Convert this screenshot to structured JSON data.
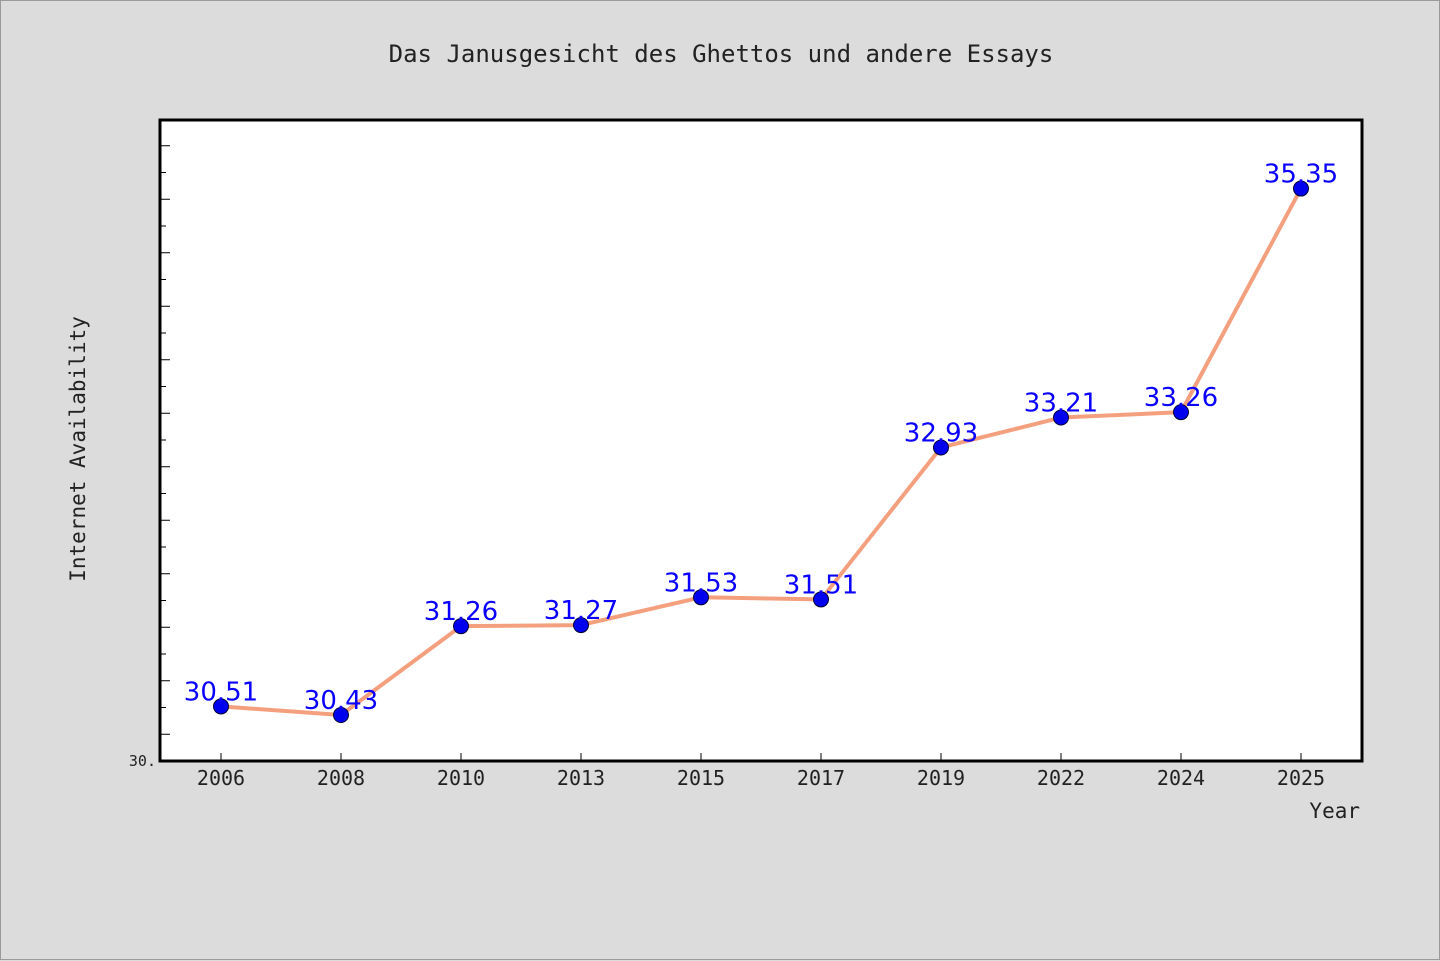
{
  "chart_data": {
    "type": "line",
    "title": "Das Janusgesicht des Ghettos und andere Essays",
    "xlabel": "Year",
    "ylabel": "Internet Availability",
    "categories": [
      "2006",
      "2008",
      "2010",
      "2013",
      "2015",
      "2017",
      "2019",
      "2022",
      "2024",
      "2025"
    ],
    "series": [
      {
        "values": [
          30.51,
          30.43,
          31.26,
          31.27,
          31.53,
          31.51,
          32.93,
          33.21,
          33.26,
          35.35
        ],
        "labels": [
          "30.51",
          "30.43",
          "31.26",
          "31.27",
          "31.53",
          "31.51",
          "32.93",
          "33.21",
          "33.26",
          "35.35"
        ],
        "line_color": "#f4a07e",
        "marker_color": "#0000ee"
      }
    ],
    "ylim": [
      30.0,
      36.0
    ],
    "yticks_labeled": [
      "30."
    ],
    "grid": false,
    "legend": "none",
    "colors": {
      "background": "#dcdcdc",
      "plot_background": "#ffffff",
      "label": "#0a00ff"
    }
  }
}
